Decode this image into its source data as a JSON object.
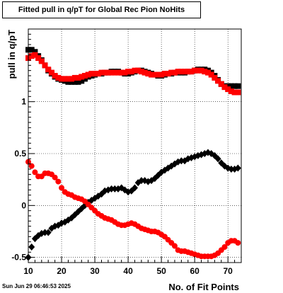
{
  "chart_data": {
    "type": "scatter",
    "title": "Fitted pull in q/pT for Global Rec Pion NoHits",
    "xlabel": "No. of Fit Points",
    "ylabel": "pull in q/pT",
    "xlim": [
      10,
      74
    ],
    "ylim": [
      -0.55,
      1.7
    ],
    "x_ticks": [
      10,
      20,
      30,
      40,
      50,
      60,
      70
    ],
    "y_ticks": [
      -0.5,
      0,
      0.5,
      1
    ],
    "y_tick_labels": [
      "-0.5",
      "0",
      "0.5",
      "1"
    ],
    "grid": true,
    "series": [
      {
        "marker": "square",
        "color": "#000000",
        "x": [
          10,
          11,
          12,
          13,
          14,
          15,
          16,
          17,
          18,
          19,
          20,
          21,
          22,
          23,
          24,
          25,
          26,
          27,
          28,
          29,
          30,
          31,
          32,
          33,
          34,
          35,
          36,
          37,
          38,
          39,
          40,
          41,
          42,
          43,
          44,
          45,
          46,
          47,
          48,
          49,
          50,
          51,
          52,
          53,
          54,
          55,
          56,
          57,
          58,
          59,
          60,
          61,
          62,
          63,
          64,
          65,
          66,
          67,
          68,
          69,
          70,
          71,
          72,
          73
        ],
        "y": [
          1.5,
          1.5,
          1.48,
          1.44,
          1.4,
          1.35,
          1.3,
          1.27,
          1.24,
          1.22,
          1.21,
          1.2,
          1.19,
          1.19,
          1.19,
          1.19,
          1.2,
          1.22,
          1.24,
          1.25,
          1.26,
          1.27,
          1.27,
          1.28,
          1.28,
          1.29,
          1.29,
          1.29,
          1.28,
          1.27,
          1.27,
          1.28,
          1.29,
          1.3,
          1.3,
          1.29,
          1.28,
          1.27,
          1.26,
          1.25,
          1.25,
          1.26,
          1.27,
          1.27,
          1.28,
          1.28,
          1.28,
          1.28,
          1.29,
          1.29,
          1.3,
          1.31,
          1.31,
          1.31,
          1.3,
          1.28,
          1.25,
          1.21,
          1.17,
          1.15,
          1.15,
          1.15,
          1.15,
          1.15
        ]
      },
      {
        "marker": "square",
        "color": "#ff0000",
        "x": [
          10,
          11,
          12,
          13,
          14,
          15,
          16,
          17,
          18,
          19,
          20,
          21,
          22,
          23,
          24,
          25,
          26,
          27,
          28,
          29,
          30,
          31,
          32,
          33,
          34,
          35,
          36,
          37,
          38,
          39,
          40,
          41,
          42,
          43,
          44,
          45,
          46,
          47,
          48,
          49,
          50,
          51,
          52,
          53,
          54,
          55,
          56,
          57,
          58,
          59,
          60,
          61,
          62,
          63,
          64,
          65,
          66,
          67,
          68,
          69,
          70,
          71,
          72,
          73
        ],
        "y": [
          1.42,
          1.44,
          1.45,
          1.42,
          1.39,
          1.35,
          1.31,
          1.28,
          1.25,
          1.23,
          1.22,
          1.22,
          1.22,
          1.22,
          1.23,
          1.23,
          1.24,
          1.25,
          1.26,
          1.27,
          1.27,
          1.27,
          1.28,
          1.28,
          1.28,
          1.28,
          1.28,
          1.28,
          1.28,
          1.28,
          1.29,
          1.29,
          1.3,
          1.3,
          1.29,
          1.28,
          1.27,
          1.26,
          1.26,
          1.26,
          1.26,
          1.27,
          1.27,
          1.28,
          1.28,
          1.29,
          1.29,
          1.29,
          1.29,
          1.29,
          1.3,
          1.3,
          1.3,
          1.29,
          1.28,
          1.26,
          1.23,
          1.2,
          1.17,
          1.14,
          1.12,
          1.1,
          1.09,
          1.09
        ]
      },
      {
        "marker": "diamond",
        "color": "#000000",
        "x": [
          10,
          11,
          12,
          13,
          14,
          15,
          16,
          17,
          18,
          19,
          20,
          21,
          22,
          23,
          24,
          25,
          26,
          27,
          28,
          29,
          30,
          31,
          32,
          33,
          34,
          35,
          36,
          37,
          38,
          39,
          40,
          41,
          42,
          43,
          44,
          45,
          46,
          47,
          48,
          49,
          50,
          51,
          52,
          53,
          54,
          55,
          56,
          57,
          58,
          59,
          60,
          61,
          62,
          63,
          64,
          65,
          66,
          67,
          68,
          69,
          70,
          71,
          72,
          73
        ],
        "y": [
          -0.5,
          -0.4,
          -0.32,
          -0.29,
          -0.27,
          -0.26,
          -0.26,
          -0.22,
          -0.2,
          -0.19,
          -0.17,
          -0.16,
          -0.14,
          -0.12,
          -0.09,
          -0.06,
          -0.03,
          0.0,
          0.03,
          0.05,
          0.07,
          0.09,
          0.11,
          0.14,
          0.15,
          0.16,
          0.16,
          0.16,
          0.17,
          0.15,
          0.13,
          0.14,
          0.17,
          0.22,
          0.24,
          0.24,
          0.23,
          0.24,
          0.26,
          0.29,
          0.32,
          0.34,
          0.36,
          0.38,
          0.4,
          0.42,
          0.43,
          0.43,
          0.45,
          0.46,
          0.47,
          0.48,
          0.49,
          0.5,
          0.51,
          0.5,
          0.48,
          0.45,
          0.41,
          0.38,
          0.36,
          0.35,
          0.35,
          0.36
        ]
      },
      {
        "marker": "circle",
        "color": "#ff0000",
        "x": [
          10,
          11,
          12,
          13,
          14,
          15,
          16,
          17,
          18,
          19,
          20,
          21,
          22,
          23,
          24,
          25,
          26,
          27,
          28,
          29,
          30,
          31,
          32,
          33,
          34,
          35,
          36,
          37,
          38,
          39,
          40,
          41,
          42,
          43,
          44,
          45,
          46,
          47,
          48,
          49,
          50,
          51,
          52,
          53,
          54,
          55,
          56,
          57,
          58,
          59,
          60,
          61,
          62,
          63,
          64,
          65,
          66,
          67,
          68,
          69,
          70,
          71,
          72,
          73
        ],
        "y": [
          0.42,
          0.38,
          0.32,
          0.28,
          0.28,
          0.31,
          0.31,
          0.3,
          0.27,
          0.23,
          0.17,
          0.13,
          0.11,
          0.1,
          0.08,
          0.07,
          0.06,
          0.04,
          0.01,
          -0.02,
          -0.05,
          -0.08,
          -0.1,
          -0.12,
          -0.13,
          -0.14,
          -0.16,
          -0.18,
          -0.19,
          -0.19,
          -0.18,
          -0.17,
          -0.18,
          -0.2,
          -0.22,
          -0.23,
          -0.24,
          -0.25,
          -0.25,
          -0.26,
          -0.28,
          -0.3,
          -0.33,
          -0.36,
          -0.39,
          -0.43,
          -0.44,
          -0.44,
          -0.45,
          -0.46,
          -0.47,
          -0.48,
          -0.49,
          -0.49,
          -0.49,
          -0.49,
          -0.48,
          -0.46,
          -0.43,
          -0.4,
          -0.36,
          -0.34,
          -0.34,
          -0.36
        ]
      }
    ],
    "datestamp": "Sun Jun 29 06:46:53 2025"
  }
}
